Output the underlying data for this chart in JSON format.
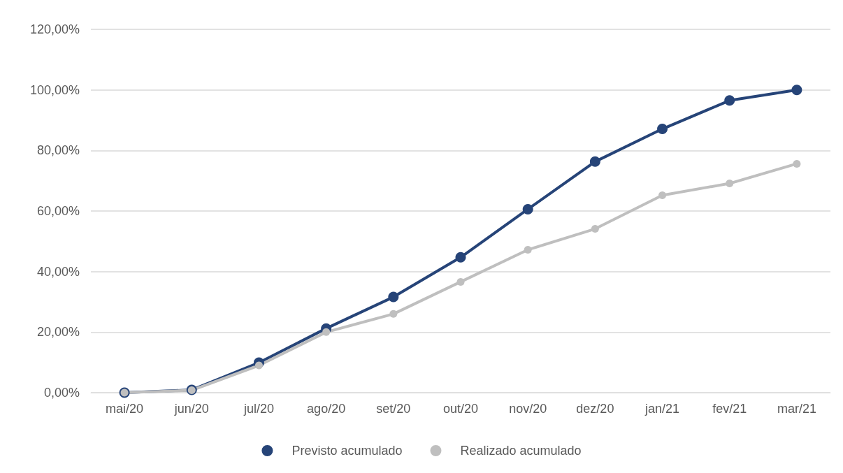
{
  "chart_data": {
    "type": "line",
    "categories": [
      "mai/20",
      "jun/20",
      "jul/20",
      "ago/20",
      "set/20",
      "out/20",
      "nov/20",
      "dez/20",
      "jan/21",
      "fev/21",
      "mar/21"
    ],
    "series": [
      {
        "name": "Previsto acumulado",
        "color": "#264478",
        "values": [
          0,
          0.9,
          9.9,
          21.2,
          31.6,
          44.7,
          60.6,
          76.3,
          87.1,
          96.5,
          100
        ]
      },
      {
        "name": "Realizado acumulado",
        "color": "#bfbfbf",
        "values": [
          0,
          0.8,
          9,
          20,
          26,
          36.6,
          47.2,
          54.1,
          65.2,
          69.1,
          75.6
        ]
      }
    ],
    "ylim": [
      0,
      120
    ],
    "yticks": [
      {
        "value": 0,
        "label": "0,00%"
      },
      {
        "value": 20,
        "label": "20,00%"
      },
      {
        "value": 40,
        "label": "40,00%"
      },
      {
        "value": 60,
        "label": "60,00%"
      },
      {
        "value": 80,
        "label": "80,00%"
      },
      {
        "value": 100,
        "label": "100,00%"
      },
      {
        "value": 120,
        "label": "120,00%"
      }
    ],
    "grid": "y",
    "legend": "bottom",
    "marker": "circle",
    "line_style": "solid"
  }
}
